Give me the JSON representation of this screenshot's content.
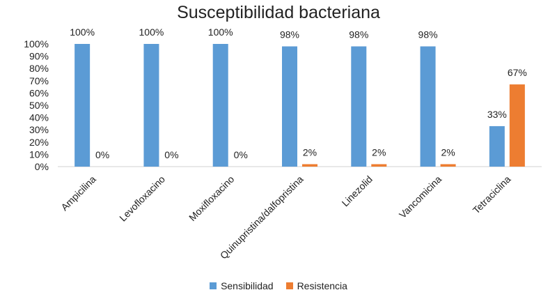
{
  "chart_data": {
    "type": "bar",
    "title": "Susceptibilidad bacteriana",
    "categories": [
      "Ampicilina",
      "Levofloxacino",
      "Moxifloxacino",
      "Quinupristina/dalfopristina",
      "Linezolid",
      "Vancomicina",
      "Tetraciclina"
    ],
    "series": [
      {
        "name": "Sensibilidad",
        "color": "#5B9BD5",
        "values": [
          100,
          100,
          100,
          98,
          98,
          98,
          33
        ],
        "labels": [
          "100%",
          "100%",
          "100%",
          "98%",
          "98%",
          "98%",
          "33%"
        ]
      },
      {
        "name": "Resistencia",
        "color": "#ED7D31",
        "values": [
          0,
          0,
          0,
          2,
          2,
          2,
          67
        ],
        "labels": [
          "0%",
          "0%",
          "0%",
          "2%",
          "2%",
          "2%",
          "67%"
        ]
      }
    ],
    "yticks": [
      "0%",
      "10%",
      "20%",
      "30%",
      "40%",
      "50%",
      "60%",
      "70%",
      "80%",
      "90%",
      "100%"
    ],
    "ylim": [
      0,
      100
    ],
    "grid": false,
    "legend_position": "bottom"
  }
}
